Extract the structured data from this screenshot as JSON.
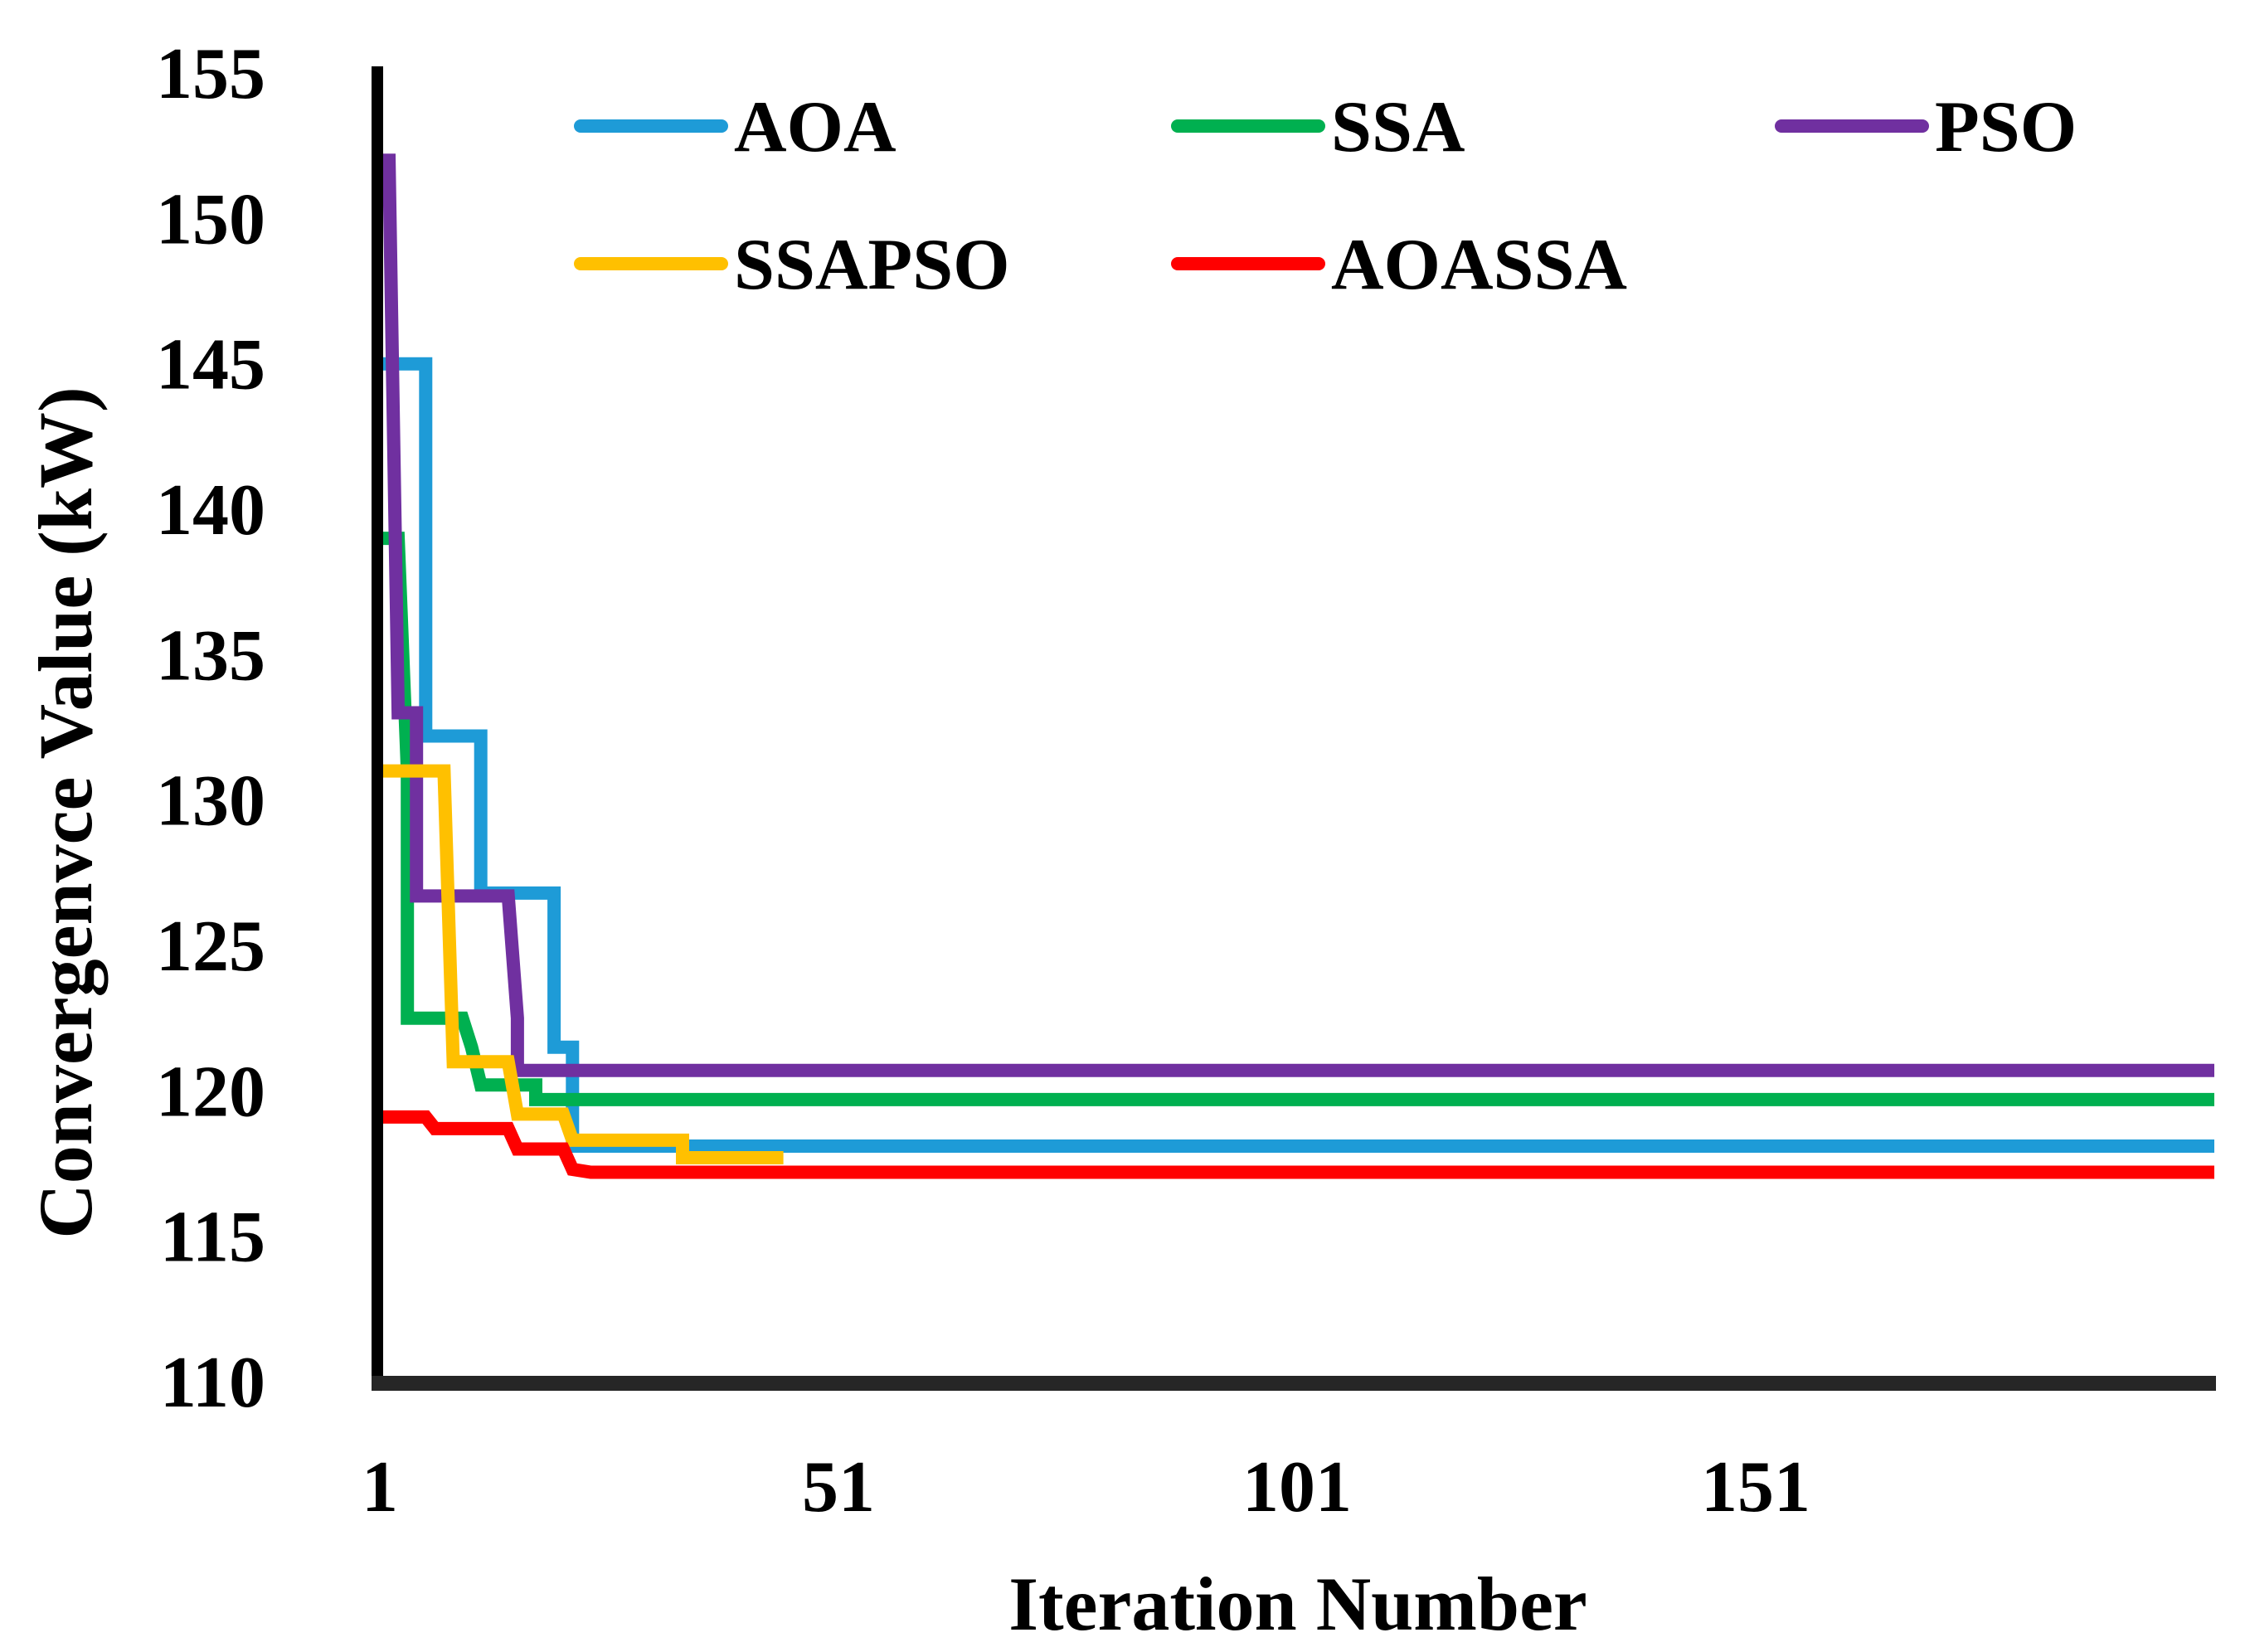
{
  "chart_data": {
    "type": "line",
    "title": "",
    "xlabel": "Iteration Number",
    "ylabel": "Convergenvce Value (kW)",
    "xlim": [
      1,
      201
    ],
    "ylim": [
      110,
      155
    ],
    "x_ticks": [
      {
        "value": 1,
        "label": "1"
      },
      {
        "value": 51,
        "label": "51"
      },
      {
        "value": 101,
        "label": "101"
      },
      {
        "value": 151,
        "label": "151"
      }
    ],
    "y_ticks": [
      {
        "value": 110,
        "label": "110"
      },
      {
        "value": 115,
        "label": "115"
      },
      {
        "value": 120,
        "label": "120"
      },
      {
        "value": 125,
        "label": "125"
      },
      {
        "value": 130,
        "label": "130"
      },
      {
        "value": 135,
        "label": "135"
      },
      {
        "value": 140,
        "label": "140"
      },
      {
        "value": 145,
        "label": "145"
      },
      {
        "value": 150,
        "label": "150"
      },
      {
        "value": 155,
        "label": "155"
      }
    ],
    "grid": false,
    "legend_position": "top",
    "series": [
      {
        "name": "AOA",
        "color": "#1E9BD7",
        "points": [
          [
            1,
            145
          ],
          [
            6,
            145
          ],
          [
            6,
            132.2
          ],
          [
            12,
            132.2
          ],
          [
            12,
            126.8
          ],
          [
            20,
            126.8
          ],
          [
            20,
            121.5
          ],
          [
            22,
            121.5
          ],
          [
            22,
            118.1
          ],
          [
            201,
            118.1
          ]
        ]
      },
      {
        "name": "SSA",
        "color": "#00B050",
        "points": [
          [
            1,
            139
          ],
          [
            3,
            139
          ],
          [
            4,
            131
          ],
          [
            4,
            122.5
          ],
          [
            10,
            122.5
          ],
          [
            11,
            121.5
          ],
          [
            12,
            120.2
          ],
          [
            18,
            120.2
          ],
          [
            18,
            119.7
          ],
          [
            201,
            119.7
          ]
        ]
      },
      {
        "name": "PSO",
        "color": "#7030A0",
        "points": [
          [
            1,
            152
          ],
          [
            2,
            152
          ],
          [
            3,
            133
          ],
          [
            5,
            133
          ],
          [
            5,
            126.7
          ],
          [
            15,
            126.7
          ],
          [
            16,
            122.5
          ],
          [
            16,
            120.7
          ],
          [
            201,
            120.7
          ]
        ]
      },
      {
        "name": "SSAPSO",
        "color": "#FFC000",
        "points": [
          [
            1,
            131
          ],
          [
            8,
            131
          ],
          [
            9,
            121
          ],
          [
            15,
            121
          ],
          [
            16,
            119.2
          ],
          [
            21,
            119.2
          ],
          [
            22,
            118.3
          ],
          [
            34,
            118.3
          ],
          [
            34,
            117.7
          ],
          [
            45,
            117.7
          ]
        ]
      },
      {
        "name": "AOASSA",
        "color": "#FF0000",
        "points": [
          [
            1,
            119.1
          ],
          [
            6,
            119.1
          ],
          [
            7,
            118.7
          ],
          [
            15,
            118.7
          ],
          [
            16,
            118
          ],
          [
            21,
            118
          ],
          [
            22,
            117.3
          ],
          [
            24,
            117.2
          ],
          [
            201,
            117.2
          ]
        ]
      }
    ]
  }
}
